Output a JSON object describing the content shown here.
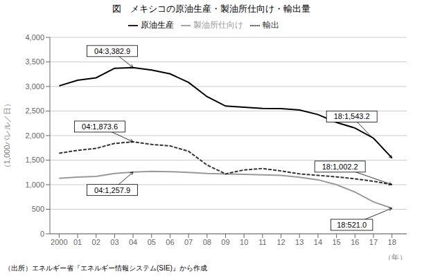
{
  "chart_data": {
    "type": "line",
    "title": "図　メキシコの原油生産・製油所仕向け・輸出量",
    "y_label": "（1,000バレル／日）",
    "x_label": "（年）",
    "source": "（出所）エネルギー省『エネルギー情報システム(SIE)』から作成",
    "x": [
      2000,
      2001,
      2002,
      2003,
      2004,
      2005,
      2006,
      2007,
      2008,
      2009,
      2010,
      2011,
      2012,
      2013,
      2014,
      2015,
      2016,
      2017,
      2018
    ],
    "series": [
      {
        "name": "原油生産",
        "color": "#000000",
        "line_style": "solid",
        "values": [
          3012,
          3127,
          3177,
          3371,
          3382.9,
          3333,
          3256,
          3083,
          2793,
          2601,
          2577,
          2553,
          2548,
          2522,
          2428,
          2267,
          2154,
          1948,
          1543.2
        ]
      },
      {
        "name": "製油所仕向け",
        "color": "#999999",
        "line_style": "solid",
        "values": [
          1130,
          1155,
          1170,
          1230,
          1257.9,
          1270,
          1265,
          1250,
          1230,
          1220,
          1210,
          1200,
          1190,
          1150,
          1100,
          1000,
          850,
          650,
          521.0
        ]
      },
      {
        "name": "輸出",
        "color": "#333333",
        "line_style": "dashed",
        "values": [
          1640,
          1700,
          1740,
          1840,
          1873.6,
          1820,
          1790,
          1680,
          1400,
          1220,
          1300,
          1330,
          1280,
          1220,
          1190,
          1160,
          1120,
          1070,
          1002.2
        ]
      }
    ],
    "xlim": [
      1999.5,
      2018.8
    ],
    "xticks": [
      2000,
      {
        "value": 2001,
        "label": "01"
      },
      {
        "value": 2002,
        "label": "02"
      },
      {
        "value": 2003,
        "label": "03"
      },
      {
        "value": 2004,
        "label": "04"
      },
      {
        "value": 2005,
        "label": "05"
      },
      {
        "value": 2006,
        "label": "06"
      },
      {
        "value": 2007,
        "label": "07"
      },
      {
        "value": 2008,
        "label": "08"
      },
      {
        "value": 2009,
        "label": "09"
      },
      {
        "value": 2010,
        "label": "10"
      },
      {
        "value": 2011,
        "label": "11"
      },
      {
        "value": 2012,
        "label": "12"
      },
      {
        "value": 2013,
        "label": "13"
      },
      {
        "value": 2014,
        "label": "14"
      },
      {
        "value": 2015,
        "label": "15"
      },
      {
        "value": 2016,
        "label": "16"
      },
      {
        "value": 2017,
        "label": "17"
      },
      {
        "value": 2018,
        "label": "18"
      }
    ],
    "ylim": [
      0,
      4000
    ],
    "yticks": [
      0,
      500,
      {
        "value": 1000,
        "label": "1,000"
      },
      {
        "value": 1500,
        "label": "1,500"
      },
      {
        "value": 2000,
        "label": "2,000"
      },
      {
        "value": 2500,
        "label": "2,500"
      },
      {
        "value": 3000,
        "label": "3,000"
      },
      {
        "value": 3500,
        "label": "3,500"
      },
      {
        "value": 4000,
        "label": "4,000"
      }
    ],
    "grid": true,
    "legend": "top",
    "annotations": [
      {
        "text": "04:3,382.9",
        "x": 2004,
        "y": 3382.9
      },
      {
        "text": "04:1,873.6",
        "x": 2004,
        "y": 1873.6
      },
      {
        "text": "04:1,257.9",
        "x": 2004,
        "y": 1257.9
      },
      {
        "text": "18:1,543.2",
        "x": 2018,
        "y": 1543.2
      },
      {
        "text": "18:1,002.2",
        "x": 2018,
        "y": 1002.2
      },
      {
        "text": "18:521.0",
        "x": 2018,
        "y": 521.0
      }
    ]
  }
}
